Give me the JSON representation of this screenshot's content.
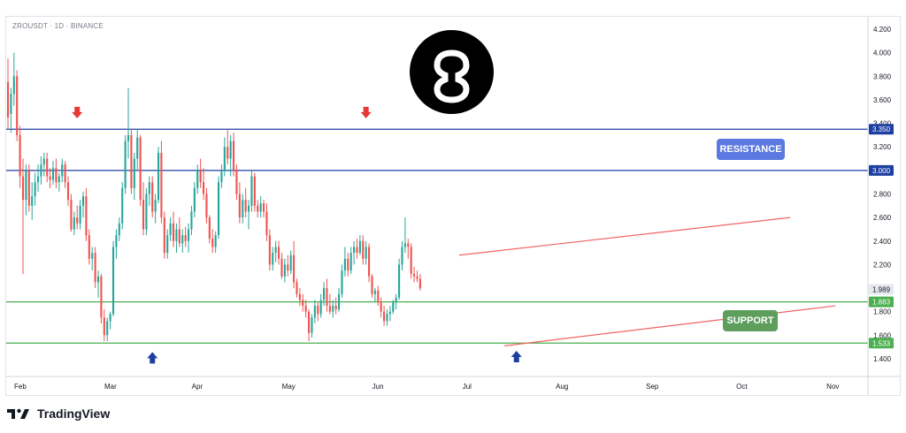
{
  "header": {
    "symbol_title": "ZROUSDT · 1D · BINANCE"
  },
  "annotations": {
    "resistance_label": "RESISTANCE",
    "support_label": "SUPPORT"
  },
  "footer": {
    "brand": "TradingView"
  },
  "colors": {
    "up": "#26a69a",
    "down": "#ef5350",
    "resistance_line": "#1e3fa0",
    "support_line": "#4caf50",
    "trend_channel": "#f06262",
    "arrow_down": "#e53935",
    "arrow_up": "#1e3fa0",
    "resistance_badge": "#5b79e0",
    "support_badge": "#5e9e5d",
    "current_price_tag": "#e6e8ee"
  },
  "chart_data": {
    "type": "candlestick",
    "title": "ZROUSDT · 1D · BINANCE",
    "x_axis": {
      "labels": [
        "Feb",
        "Mar",
        "Apr",
        "May",
        "Jun",
        "Jul",
        "Aug",
        "Sep",
        "Oct",
        "Nov"
      ],
      "start": "Feb"
    },
    "y_axis": {
      "position": "right",
      "ylim": [
        1.25,
        4.25
      ],
      "ticks": [
        "4.200",
        "4.000",
        "3.800",
        "3.600",
        "3.400",
        "3.200",
        "3.000",
        "2.800",
        "2.600",
        "2.400",
        "2.200",
        "2.000",
        "1.800",
        "1.600",
        "1.400"
      ]
    },
    "levels": [
      {
        "label": "3.350",
        "value": 3.35,
        "role": "resistance"
      },
      {
        "label": "3.000",
        "value": 3.0,
        "role": "resistance"
      },
      {
        "label": "1.883",
        "value": 1.883,
        "role": "support"
      },
      {
        "label": "1.533",
        "value": 1.533,
        "role": "support"
      }
    ],
    "current_price": {
      "label": "1.989",
      "value": 1.989
    },
    "trend_channel": {
      "upper": [
        {
          "day": 150,
          "price": 2.28
        },
        {
          "day": 260,
          "price": 2.6
        }
      ],
      "lower": [
        {
          "day": 165,
          "price": 1.51
        },
        {
          "day": 275,
          "price": 1.85
        }
      ]
    },
    "markers": [
      {
        "type": "arrow-down",
        "day": 23,
        "price": 3.48
      },
      {
        "type": "arrow-down",
        "day": 119,
        "price": 3.48
      },
      {
        "type": "arrow-up",
        "day": 48,
        "price": 1.42
      },
      {
        "type": "arrow-up",
        "day": 169,
        "price": 1.43
      }
    ],
    "candles": [
      {
        "o": 3.75,
        "h": 3.95,
        "l": 3.35,
        "c": 3.45
      },
      {
        "o": 3.48,
        "h": 3.7,
        "l": 3.32,
        "c": 3.65
      },
      {
        "o": 3.65,
        "h": 4.0,
        "l": 3.55,
        "c": 3.8
      },
      {
        "o": 3.8,
        "h": 3.85,
        "l": 3.25,
        "c": 3.3
      },
      {
        "o": 3.3,
        "h": 3.38,
        "l": 2.85,
        "c": 2.95
      },
      {
        "o": 2.95,
        "h": 3.1,
        "l": 2.12,
        "c": 2.75
      },
      {
        "o": 2.75,
        "h": 3.05,
        "l": 2.62,
        "c": 3.0
      },
      {
        "o": 3.0,
        "h": 3.05,
        "l": 2.65,
        "c": 2.7
      },
      {
        "o": 2.7,
        "h": 2.9,
        "l": 2.58,
        "c": 2.78
      },
      {
        "o": 2.78,
        "h": 2.98,
        "l": 2.7,
        "c": 2.9
      },
      {
        "o": 2.9,
        "h": 3.05,
        "l": 2.82,
        "c": 2.95
      },
      {
        "o": 2.95,
        "h": 3.12,
        "l": 2.88,
        "c": 3.05
      },
      {
        "o": 3.05,
        "h": 3.15,
        "l": 2.95,
        "c": 3.1
      },
      {
        "o": 3.1,
        "h": 3.15,
        "l": 2.9,
        "c": 2.95
      },
      {
        "o": 2.95,
        "h": 3.02,
        "l": 2.85,
        "c": 2.92
      },
      {
        "o": 2.92,
        "h": 3.08,
        "l": 2.88,
        "c": 3.02
      },
      {
        "o": 3.02,
        "h": 3.1,
        "l": 2.85,
        "c": 2.9
      },
      {
        "o": 2.9,
        "h": 2.98,
        "l": 2.82,
        "c": 2.95
      },
      {
        "o": 2.95,
        "h": 3.1,
        "l": 2.9,
        "c": 3.05
      },
      {
        "o": 3.05,
        "h": 3.08,
        "l": 2.85,
        "c": 2.9
      },
      {
        "o": 2.9,
        "h": 2.95,
        "l": 2.7,
        "c": 2.75
      },
      {
        "o": 2.75,
        "h": 2.8,
        "l": 2.48,
        "c": 2.5
      },
      {
        "o": 2.5,
        "h": 2.65,
        "l": 2.45,
        "c": 2.6
      },
      {
        "o": 2.6,
        "h": 2.7,
        "l": 2.5,
        "c": 2.55
      },
      {
        "o": 2.55,
        "h": 2.75,
        "l": 2.5,
        "c": 2.7
      },
      {
        "o": 2.7,
        "h": 2.82,
        "l": 2.6,
        "c": 2.78
      },
      {
        "o": 2.78,
        "h": 2.85,
        "l": 2.4,
        "c": 2.45
      },
      {
        "o": 2.45,
        "h": 2.5,
        "l": 2.2,
        "c": 2.25
      },
      {
        "o": 2.25,
        "h": 2.35,
        "l": 2.15,
        "c": 2.3
      },
      {
        "o": 2.3,
        "h": 2.35,
        "l": 2.0,
        "c": 2.05
      },
      {
        "o": 2.05,
        "h": 2.15,
        "l": 1.92,
        "c": 2.1
      },
      {
        "o": 2.1,
        "h": 2.12,
        "l": 1.7,
        "c": 1.75
      },
      {
        "o": 1.75,
        "h": 1.82,
        "l": 1.55,
        "c": 1.6
      },
      {
        "o": 1.6,
        "h": 1.75,
        "l": 1.55,
        "c": 1.72
      },
      {
        "o": 1.72,
        "h": 1.8,
        "l": 1.65,
        "c": 1.78
      },
      {
        "o": 1.78,
        "h": 2.4,
        "l": 1.76,
        "c": 2.35
      },
      {
        "o": 2.35,
        "h": 2.5,
        "l": 2.25,
        "c": 2.45
      },
      {
        "o": 2.45,
        "h": 2.6,
        "l": 2.4,
        "c": 2.55
      },
      {
        "o": 2.55,
        "h": 2.9,
        "l": 2.5,
        "c": 2.85
      },
      {
        "o": 2.85,
        "h": 3.3,
        "l": 2.8,
        "c": 3.25
      },
      {
        "o": 3.25,
        "h": 3.7,
        "l": 3.1,
        "c": 3.3
      },
      {
        "o": 3.3,
        "h": 3.35,
        "l": 2.8,
        "c": 2.85
      },
      {
        "o": 2.85,
        "h": 3.15,
        "l": 2.75,
        "c": 3.1
      },
      {
        "o": 3.1,
        "h": 3.35,
        "l": 3.0,
        "c": 3.28
      },
      {
        "o": 3.28,
        "h": 3.3,
        "l": 2.7,
        "c": 2.75
      },
      {
        "o": 2.75,
        "h": 2.9,
        "l": 2.45,
        "c": 2.5
      },
      {
        "o": 2.5,
        "h": 2.85,
        "l": 2.45,
        "c": 2.8
      },
      {
        "o": 2.8,
        "h": 2.95,
        "l": 2.7,
        "c": 2.9
      },
      {
        "o": 2.9,
        "h": 2.95,
        "l": 2.6,
        "c": 2.65
      },
      {
        "o": 2.65,
        "h": 2.8,
        "l": 2.55,
        "c": 2.75
      },
      {
        "o": 2.75,
        "h": 3.2,
        "l": 2.72,
        "c": 3.15
      },
      {
        "o": 3.15,
        "h": 3.25,
        "l": 2.55,
        "c": 2.6
      },
      {
        "o": 2.6,
        "h": 2.65,
        "l": 2.25,
        "c": 2.3
      },
      {
        "o": 2.3,
        "h": 2.5,
        "l": 2.25,
        "c": 2.45
      },
      {
        "o": 2.45,
        "h": 2.6,
        "l": 2.4,
        "c": 2.55
      },
      {
        "o": 2.55,
        "h": 2.65,
        "l": 2.35,
        "c": 2.4
      },
      {
        "o": 2.4,
        "h": 2.55,
        "l": 2.3,
        "c": 2.5
      },
      {
        "o": 2.5,
        "h": 2.6,
        "l": 2.35,
        "c": 2.38
      },
      {
        "o": 2.38,
        "h": 2.5,
        "l": 2.3,
        "c": 2.45
      },
      {
        "o": 2.45,
        "h": 2.52,
        "l": 2.35,
        "c": 2.4
      },
      {
        "o": 2.4,
        "h": 2.55,
        "l": 2.3,
        "c": 2.5
      },
      {
        "o": 2.5,
        "h": 2.7,
        "l": 2.45,
        "c": 2.65
      },
      {
        "o": 2.65,
        "h": 2.9,
        "l": 2.6,
        "c": 2.85
      },
      {
        "o": 2.85,
        "h": 3.05,
        "l": 2.8,
        "c": 3.0
      },
      {
        "o": 3.0,
        "h": 3.1,
        "l": 2.85,
        "c": 2.9
      },
      {
        "o": 2.9,
        "h": 3.02,
        "l": 2.75,
        "c": 2.8
      },
      {
        "o": 2.8,
        "h": 2.85,
        "l": 2.55,
        "c": 2.6
      },
      {
        "o": 2.6,
        "h": 2.62,
        "l": 2.38,
        "c": 2.42
      },
      {
        "o": 2.42,
        "h": 2.5,
        "l": 2.3,
        "c": 2.35
      },
      {
        "o": 2.35,
        "h": 2.48,
        "l": 2.3,
        "c": 2.45
      },
      {
        "o": 2.45,
        "h": 2.95,
        "l": 2.42,
        "c": 2.9
      },
      {
        "o": 2.9,
        "h": 3.05,
        "l": 2.85,
        "c": 3.0
      },
      {
        "o": 3.0,
        "h": 3.28,
        "l": 2.95,
        "c": 3.2
      },
      {
        "o": 3.2,
        "h": 3.35,
        "l": 3.05,
        "c": 3.1
      },
      {
        "o": 3.1,
        "h": 3.3,
        "l": 2.95,
        "c": 3.25
      },
      {
        "o": 3.25,
        "h": 3.32,
        "l": 2.95,
        "c": 3.0
      },
      {
        "o": 3.0,
        "h": 3.05,
        "l": 2.75,
        "c": 2.8
      },
      {
        "o": 2.8,
        "h": 2.9,
        "l": 2.55,
        "c": 2.6
      },
      {
        "o": 2.6,
        "h": 2.8,
        "l": 2.55,
        "c": 2.75
      },
      {
        "o": 2.75,
        "h": 2.85,
        "l": 2.6,
        "c": 2.65
      },
      {
        "o": 2.65,
        "h": 2.75,
        "l": 2.5,
        "c": 2.7
      },
      {
        "o": 2.7,
        "h": 3.0,
        "l": 2.65,
        "c": 2.95
      },
      {
        "o": 2.95,
        "h": 2.98,
        "l": 2.65,
        "c": 2.7
      },
      {
        "o": 2.7,
        "h": 2.75,
        "l": 2.6,
        "c": 2.65
      },
      {
        "o": 2.65,
        "h": 2.78,
        "l": 2.6,
        "c": 2.72
      },
      {
        "o": 2.72,
        "h": 2.75,
        "l": 2.6,
        "c": 2.65
      },
      {
        "o": 2.65,
        "h": 2.72,
        "l": 2.4,
        "c": 2.45
      },
      {
        "o": 2.45,
        "h": 2.5,
        "l": 2.15,
        "c": 2.2
      },
      {
        "o": 2.2,
        "h": 2.35,
        "l": 2.15,
        "c": 2.3
      },
      {
        "o": 2.3,
        "h": 2.4,
        "l": 2.22,
        "c": 2.35
      },
      {
        "o": 2.35,
        "h": 2.4,
        "l": 2.2,
        "c": 2.25
      },
      {
        "o": 2.25,
        "h": 2.3,
        "l": 2.08,
        "c": 2.1
      },
      {
        "o": 2.1,
        "h": 2.25,
        "l": 2.05,
        "c": 2.2
      },
      {
        "o": 2.2,
        "h": 2.28,
        "l": 2.1,
        "c": 2.15
      },
      {
        "o": 2.15,
        "h": 2.32,
        "l": 2.12,
        "c": 2.28
      },
      {
        "o": 2.28,
        "h": 2.4,
        "l": 2.0,
        "c": 2.05
      },
      {
        "o": 2.05,
        "h": 2.08,
        "l": 1.92,
        "c": 1.95
      },
      {
        "o": 1.95,
        "h": 2.0,
        "l": 1.85,
        "c": 1.9
      },
      {
        "o": 1.9,
        "h": 1.95,
        "l": 1.8,
        "c": 1.85
      },
      {
        "o": 1.85,
        "h": 1.9,
        "l": 1.75,
        "c": 1.8
      },
      {
        "o": 1.8,
        "h": 1.82,
        "l": 1.55,
        "c": 1.62
      },
      {
        "o": 1.62,
        "h": 1.78,
        "l": 1.58,
        "c": 1.75
      },
      {
        "o": 1.75,
        "h": 1.9,
        "l": 1.7,
        "c": 1.85
      },
      {
        "o": 1.85,
        "h": 1.88,
        "l": 1.72,
        "c": 1.78
      },
      {
        "o": 1.78,
        "h": 1.95,
        "l": 1.75,
        "c": 1.9
      },
      {
        "o": 1.9,
        "h": 2.05,
        "l": 1.85,
        "c": 2.0
      },
      {
        "o": 2.0,
        "h": 2.08,
        "l": 1.8,
        "c": 1.85
      },
      {
        "o": 1.85,
        "h": 1.95,
        "l": 1.78,
        "c": 1.8
      },
      {
        "o": 1.8,
        "h": 1.9,
        "l": 1.75,
        "c": 1.85
      },
      {
        "o": 1.85,
        "h": 1.92,
        "l": 1.78,
        "c": 1.82
      },
      {
        "o": 1.82,
        "h": 2.0,
        "l": 1.8,
        "c": 1.95
      },
      {
        "o": 1.95,
        "h": 2.2,
        "l": 1.92,
        "c": 2.15
      },
      {
        "o": 2.15,
        "h": 2.35,
        "l": 2.1,
        "c": 2.25
      },
      {
        "o": 2.25,
        "h": 2.3,
        "l": 2.1,
        "c": 2.15
      },
      {
        "o": 2.15,
        "h": 2.35,
        "l": 2.12,
        "c": 2.3
      },
      {
        "o": 2.3,
        "h": 2.4,
        "l": 2.2,
        "c": 2.35
      },
      {
        "o": 2.35,
        "h": 2.42,
        "l": 2.25,
        "c": 2.3
      },
      {
        "o": 2.3,
        "h": 2.45,
        "l": 2.28,
        "c": 2.4
      },
      {
        "o": 2.4,
        "h": 2.45,
        "l": 2.2,
        "c": 2.25
      },
      {
        "o": 2.25,
        "h": 2.4,
        "l": 2.2,
        "c": 2.35
      },
      {
        "o": 2.35,
        "h": 2.38,
        "l": 2.05,
        "c": 2.1
      },
      {
        "o": 2.1,
        "h": 2.12,
        "l": 1.92,
        "c": 1.95
      },
      {
        "o": 1.95,
        "h": 2.0,
        "l": 1.88,
        "c": 1.98
      },
      {
        "o": 1.98,
        "h": 2.02,
        "l": 1.85,
        "c": 1.88
      },
      {
        "o": 1.88,
        "h": 1.92,
        "l": 1.75,
        "c": 1.8
      },
      {
        "o": 1.8,
        "h": 1.85,
        "l": 1.68,
        "c": 1.72
      },
      {
        "o": 1.72,
        "h": 1.82,
        "l": 1.68,
        "c": 1.78
      },
      {
        "o": 1.78,
        "h": 1.85,
        "l": 1.72,
        "c": 1.8
      },
      {
        "o": 1.8,
        "h": 1.9,
        "l": 1.78,
        "c": 1.88
      },
      {
        "o": 1.88,
        "h": 1.95,
        "l": 1.82,
        "c": 1.92
      },
      {
        "o": 1.92,
        "h": 2.25,
        "l": 1.9,
        "c": 2.2
      },
      {
        "o": 2.2,
        "h": 2.4,
        "l": 2.15,
        "c": 2.35
      },
      {
        "o": 2.35,
        "h": 2.6,
        "l": 2.3,
        "c": 2.38
      },
      {
        "o": 2.38,
        "h": 2.42,
        "l": 2.25,
        "c": 2.35
      },
      {
        "o": 2.35,
        "h": 2.38,
        "l": 2.08,
        "c": 2.12
      },
      {
        "o": 2.12,
        "h": 2.18,
        "l": 2.05,
        "c": 2.1
      },
      {
        "o": 2.1,
        "h": 2.15,
        "l": 2.05,
        "c": 2.08
      },
      {
        "o": 2.08,
        "h": 2.12,
        "l": 1.98,
        "c": 2.0
      }
    ]
  }
}
